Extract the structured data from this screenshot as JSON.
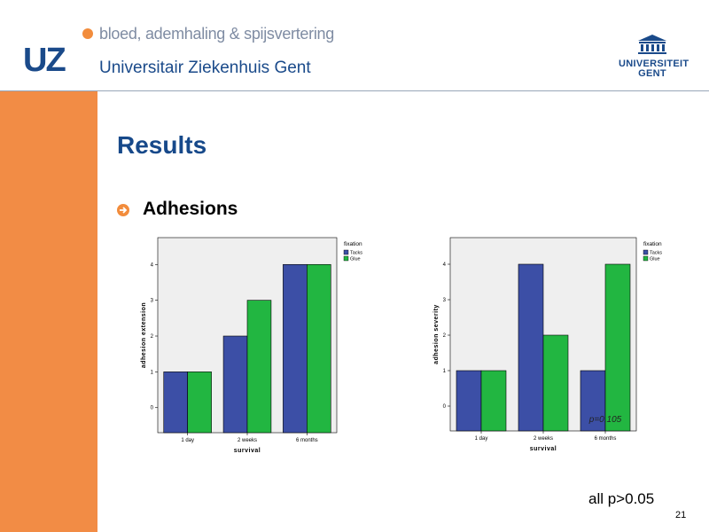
{
  "header": {
    "logo_text": "UZ",
    "department": "bloed, ademhaling & spijsvertering",
    "hospital": "Universitair Ziekenhuis Gent",
    "university_line1": "UNIVERSITEIT",
    "university_line2": "GENT"
  },
  "slide": {
    "title": "Results",
    "bullet": "Adhesions",
    "footer_note": "all p>0.05",
    "page_number": "21"
  },
  "colors": {
    "tacks": "#3c4fa6",
    "glue": "#22b641",
    "plot_bg": "#efefef",
    "sidebar": "#f28c45",
    "title": "#17498a"
  },
  "chart_data": [
    {
      "type": "bar",
      "categories": [
        "1 day",
        "2 weeks",
        "6 months"
      ],
      "series": [
        {
          "name": "Tacks",
          "values": [
            1,
            2,
            4
          ]
        },
        {
          "name": "Glue",
          "values": [
            1,
            3,
            4
          ]
        }
      ],
      "xlabel": "survival",
      "ylabel": "adhesion extension",
      "legend_title": "fixation",
      "yticks": [
        0,
        1,
        2,
        3,
        4
      ],
      "ylim": [
        -0.7,
        4.75
      ],
      "annotation": ""
    },
    {
      "type": "bar",
      "categories": [
        "1 day",
        "2 weeks",
        "6 months"
      ],
      "series": [
        {
          "name": "Tacks",
          "values": [
            1,
            4,
            1
          ]
        },
        {
          "name": "Glue",
          "values": [
            1,
            2,
            4
          ]
        }
      ],
      "xlabel": "survival",
      "ylabel": "adhesion severity",
      "legend_title": "fixation",
      "yticks": [
        0,
        1,
        2,
        3,
        4
      ],
      "ylim": [
        -0.7,
        4.75
      ],
      "annotation": "p=0.105"
    }
  ]
}
